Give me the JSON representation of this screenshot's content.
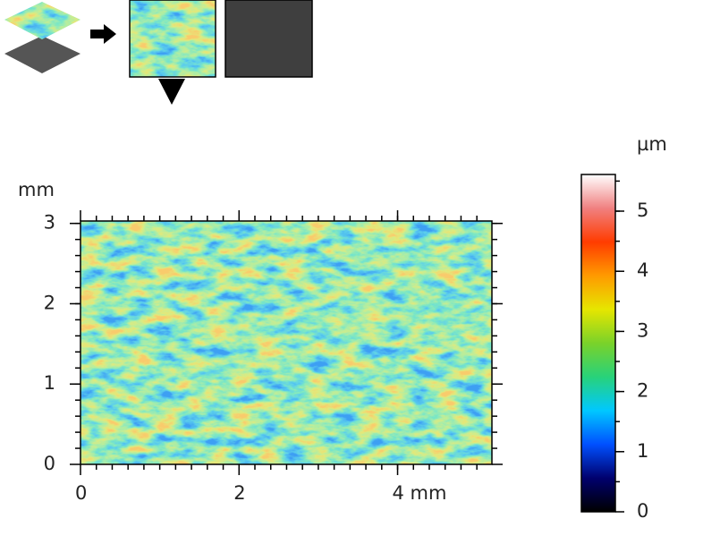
{
  "chart_data": {
    "type": "heatmap",
    "y_label": "mm",
    "xlim": [
      0,
      5.19
    ],
    "ylim": [
      0,
      3.03
    ],
    "xticks": [
      0,
      2,
      {
        "value": 4,
        "label": "4 mm"
      }
    ],
    "yticks": [
      0,
      1,
      2,
      3
    ],
    "colorbar": {
      "label": "µm",
      "lim": [
        0,
        5.61
      ],
      "ticks": [
        0,
        1,
        2,
        3,
        4,
        5
      ],
      "colormap": [
        "#000000",
        "#00006e",
        "#0050ff",
        "#00c8ff",
        "#28d27a",
        "#7ad22a",
        "#e6e600",
        "#ff9a00",
        "#ff3c00",
        "#f08080",
        "#ffffff"
      ]
    }
  }
}
